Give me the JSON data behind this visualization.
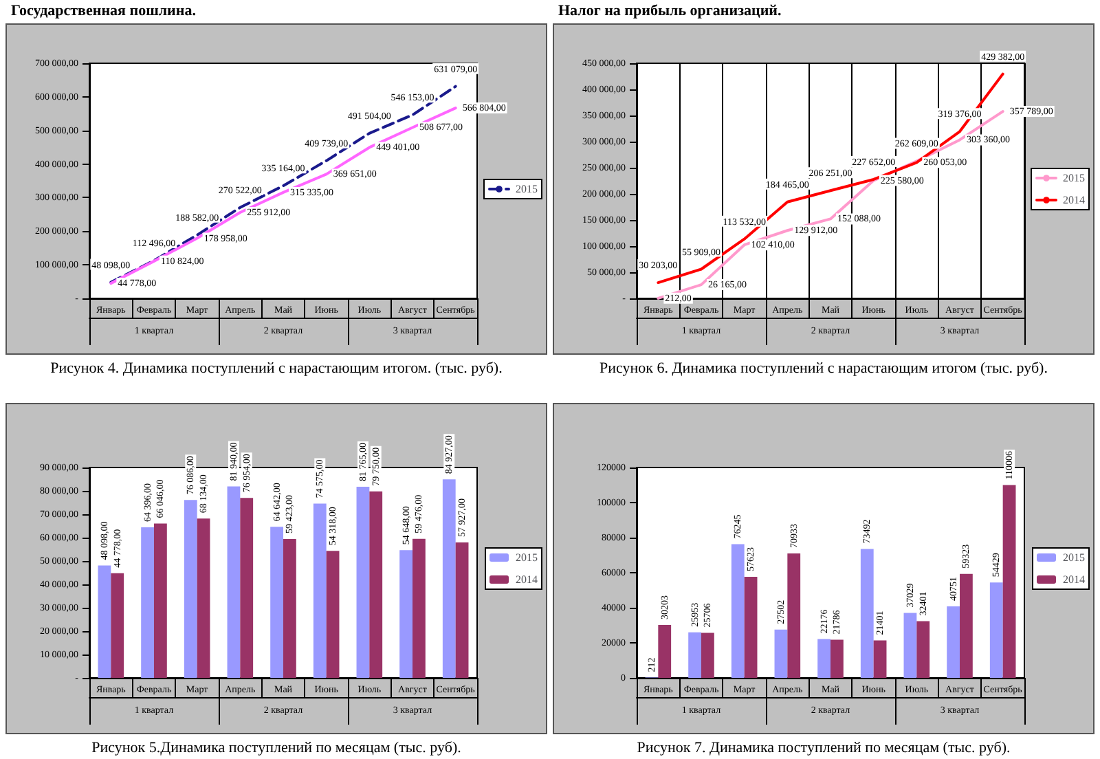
{
  "chart_data": [
    {
      "type": "line",
      "title": "Государственная пошлина.",
      "subtitle": "Рисунок 4. Динамика поступлений с нарастающим итогом. (тыс. руб).",
      "categories": [
        "Январь",
        "Февраль",
        "Март",
        "Апрель",
        "Май",
        "Июнь",
        "Июль",
        "Август",
        "Сентябрь"
      ],
      "annotations": [
        "1 квартал",
        "2 квартал",
        "3 квартал"
      ],
      "legend": "right",
      "marker": "none",
      "ylim": [
        0,
        700000
      ],
      "yticks": [
        {
          "value": 0,
          "label": "-"
        },
        {
          "value": 100000,
          "label": "100 000,00"
        },
        {
          "value": 200000,
          "label": "200 000,00"
        },
        {
          "value": 300000,
          "label": "300 000,00"
        },
        {
          "value": 400000,
          "label": "400 000,00"
        },
        {
          "value": 500000,
          "label": "500 000,00"
        },
        {
          "value": 600000,
          "label": "600 000,00"
        },
        {
          "value": 700000,
          "label": "700 000,00"
        }
      ],
      "series": [
        {
          "name": "2015",
          "color": "#1a1a8c",
          "line_style": "dashed",
          "values": [
            48098,
            112496,
            188582,
            270522,
            335164,
            409739,
            491504,
            546153,
            631079
          ],
          "value_labels": [
            "48 098,00",
            "112 496,00",
            "188 582,00",
            "270 522,00",
            "335 164,00",
            "409 739,00",
            "491 504,00",
            "546 153,00",
            "631 079,00"
          ]
        },
        {
          "color": "#ff66ff",
          "line_style": "solid",
          "values": [
            44778,
            110824,
            178958,
            255912,
            315335,
            369651,
            449401,
            508677,
            566804
          ],
          "value_labels": [
            "44 778,00",
            "110 824,00",
            "178 958,00",
            "255 912,00",
            "315 335,00",
            "369 651,00",
            "449 401,00",
            "508 677,00",
            "566 804,00"
          ]
        }
      ]
    },
    {
      "type": "line",
      "title": "Налог на прибыль организаций.",
      "subtitle": "Рисунок 6. Динамика поступлений с нарастающим итогом (тыс. руб).",
      "categories": [
        "Январь",
        "Февраль",
        "Март",
        "Апрель",
        "Май",
        "Июнь",
        "Июль",
        "Август",
        "Сентябрь"
      ],
      "annotations": [
        "1 квартал",
        "2 квартал",
        "3 квартал"
      ],
      "legend": "right",
      "marker": "none",
      "grid": "x",
      "ylim": [
        0,
        450000
      ],
      "yticks": [
        {
          "value": 0,
          "label": "-"
        },
        {
          "value": 50000,
          "label": "50 000,00"
        },
        {
          "value": 100000,
          "label": "100 000,00"
        },
        {
          "value": 150000,
          "label": "150 000,00"
        },
        {
          "value": 200000,
          "label": "200 000,00"
        },
        {
          "value": 250000,
          "label": "250 000,00"
        },
        {
          "value": 300000,
          "label": "300 000,00"
        },
        {
          "value": 350000,
          "label": "350 000,00"
        },
        {
          "value": 400000,
          "label": "400 000,00"
        },
        {
          "value": 450000,
          "label": "450 000,00"
        }
      ],
      "series": [
        {
          "name": "2015",
          "color": "#ff99cc",
          "values": [
            212,
            26165,
            102410,
            129912,
            152088,
            225580,
            262609,
            303360,
            357789
          ],
          "value_labels": [
            "212,00",
            "26 165,00",
            "102 410,00",
            "129 912,00",
            "152 088,00",
            "225 580,00",
            "262 609,00",
            "303 360,00",
            "357 789,00"
          ]
        },
        {
          "name": "2014",
          "color": "#ff0000",
          "values": [
            30203,
            55909,
            113532,
            184465,
            206251,
            227652,
            260053,
            319376,
            429382
          ],
          "value_labels": [
            "30 203,00",
            "55 909,00",
            "113 532,00",
            "184 465,00",
            "206 251,00",
            "227 652,00",
            "260 053,00",
            "319 376,00",
            "429 382,00"
          ]
        }
      ]
    },
    {
      "type": "bar",
      "subtitle": "Рисунок 5.Динамика поступлений по месяцам (тыс. руб).",
      "categories": [
        "Январь",
        "Февраль",
        "Март",
        "Апрель",
        "Май",
        "Июнь",
        "Июль",
        "Август",
        "Сентябрь"
      ],
      "annotations": [
        "1 квартал",
        "2 квартал",
        "3 квартал"
      ],
      "legend": "right",
      "ylim": [
        0,
        90000
      ],
      "yticks": [
        {
          "value": 0,
          "label": "-"
        },
        {
          "value": 10000,
          "label": "10 000,00"
        },
        {
          "value": 20000,
          "label": "20 000,00"
        },
        {
          "value": 30000,
          "label": "30 000,00"
        },
        {
          "value": 40000,
          "label": "40 000,00"
        },
        {
          "value": 50000,
          "label": "50 000,00"
        },
        {
          "value": 60000,
          "label": "60 000,00"
        },
        {
          "value": 70000,
          "label": "70 000,00"
        },
        {
          "value": 80000,
          "label": "80 000,00"
        },
        {
          "value": 90000,
          "label": "90 000,00"
        }
      ],
      "series": [
        {
          "name": "2015",
          "color": "#9999ff",
          "values": [
            48098,
            64396,
            76086,
            81940,
            64642,
            74575,
            81765,
            54648,
            84927
          ],
          "value_labels": [
            "48 098,00",
            "64 396,00",
            "76 086,00",
            "81 940,00",
            "64 642,00",
            "74 575,00",
            "81 765,00",
            "54 648,00",
            "84 927,00"
          ]
        },
        {
          "name": "2014",
          "color": "#993366",
          "values": [
            44778,
            66046,
            68134,
            76954,
            59423,
            54318,
            79750,
            59476,
            57927
          ],
          "value_labels": [
            "44 778,00",
            "66 046,00",
            "68 134,00",
            "76 954,00",
            "59 423,00",
            "54 318,00",
            "79 750,00",
            "59 476,00",
            "57 927,00"
          ]
        }
      ]
    },
    {
      "type": "bar",
      "subtitle": "Рисунок 7. Динамика поступлений по месяцам (тыс. руб).",
      "categories": [
        "Январь",
        "Февраль",
        "Март",
        "Апрель",
        "Май",
        "Июнь",
        "Июль",
        "Август",
        "Сентябрь"
      ],
      "annotations": [
        "1 квартал",
        "2 квартал",
        "3 квартал"
      ],
      "legend": "right",
      "data_labels": true,
      "ylim": [
        0,
        120000
      ],
      "yticks": [
        0,
        20000,
        40000,
        60000,
        80000,
        100000,
        120000
      ],
      "series": [
        {
          "name": "2015",
          "color": "#9999ff",
          "values": [
            212,
            25953,
            76245,
            27502,
            22176,
            73492,
            37029,
            40751,
            54429
          ]
        },
        {
          "name": "2014",
          "color": "#993366",
          "values": [
            30203,
            25706,
            57623,
            70933,
            21786,
            21401,
            32401,
            59323,
            110006
          ]
        }
      ]
    }
  ]
}
